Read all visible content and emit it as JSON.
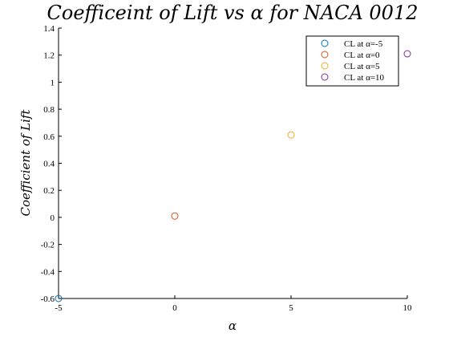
{
  "chart_data": {
    "type": "scatter",
    "title": "Coefficeint of Lift vs α for NACA 0012",
    "xlabel": "α",
    "ylabel": "Coefficient of Lift",
    "xlim": [
      -5,
      10
    ],
    "ylim": [
      -0.6,
      1.4
    ],
    "xticks": [
      -5,
      0,
      5,
      10
    ],
    "yticks": [
      -0.6,
      -0.4,
      -0.2,
      0,
      0.2,
      0.4,
      0.6,
      0.8,
      1,
      1.2,
      1.4
    ],
    "xtick_labels": [
      "-5",
      "0",
      "5",
      "10"
    ],
    "ytick_labels": [
      "-0.6",
      "-0.4",
      "-0.2",
      "0",
      "0.2",
      "0.4",
      "0.6",
      "0.8",
      "1",
      "1.2",
      "1.4"
    ],
    "grid": false,
    "legend_position": "top-right",
    "series": [
      {
        "name": "CL at α=-5",
        "x": [
          -5
        ],
        "y": [
          -0.6
        ],
        "color": "#0072BD",
        "marker": "circle"
      },
      {
        "name": "CL at α=0",
        "x": [
          0
        ],
        "y": [
          0.01
        ],
        "color": "#D95319",
        "marker": "circle"
      },
      {
        "name": "CL at α=5",
        "x": [
          5
        ],
        "y": [
          0.61
        ],
        "color": "#EDB120",
        "marker": "circle"
      },
      {
        "name": "CL at α=10",
        "x": [
          10
        ],
        "y": [
          1.21
        ],
        "color": "#7E2F8E",
        "marker": "circle"
      }
    ]
  }
}
